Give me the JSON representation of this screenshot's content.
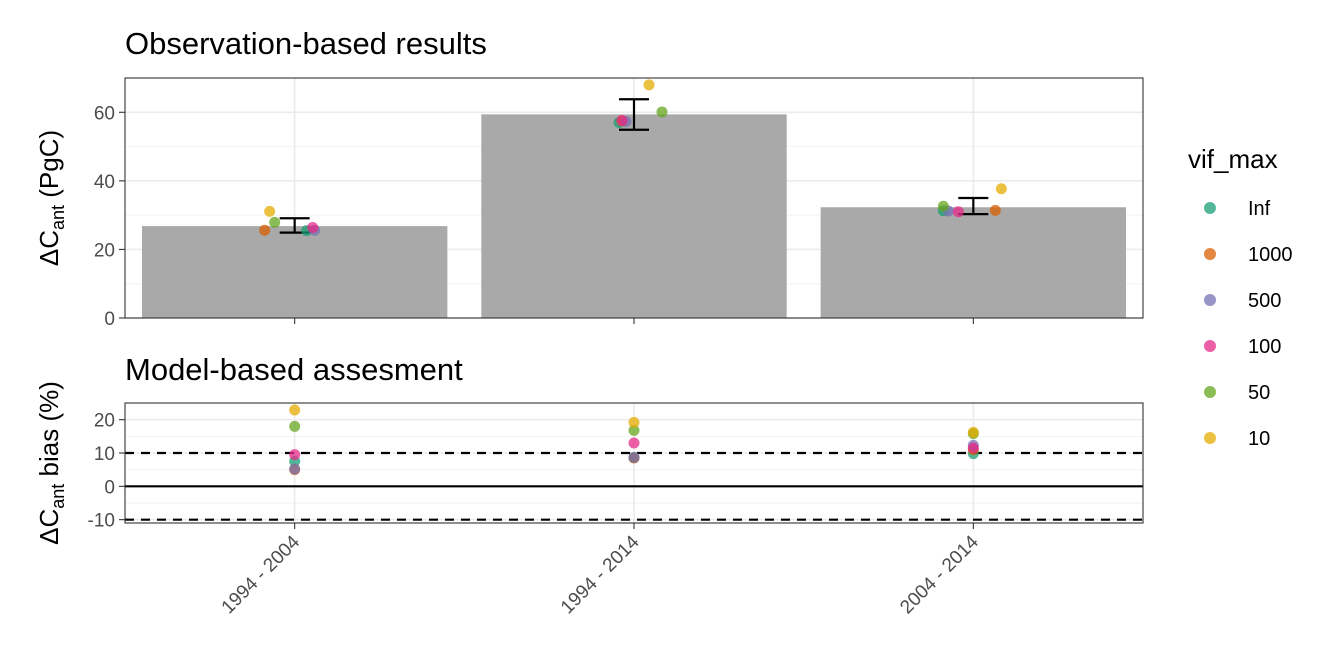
{
  "chart_data": [
    {
      "type": "bar",
      "title": "Observation-based results",
      "ylabel": {
        "delta": "Δ",
        "base": "C",
        "sub": "ant",
        "rest": " (PgC)"
      },
      "ylim": [
        0,
        70
      ],
      "y_ticks": [
        0,
        20,
        40,
        60
      ],
      "categories": [
        "1994 - 2004",
        "1994 - 2014",
        "2004 - 2014"
      ],
      "bar_values": [
        26.8,
        59.4,
        32.3
      ],
      "bar_color": "#a9a9a9",
      "error_bars": [
        {
          "low": 24.9,
          "high": 29.1
        },
        {
          "low": 54.9,
          "high": 63.8
        },
        {
          "low": 30.3,
          "high": 35.0
        }
      ],
      "series": [
        {
          "name": "Inf",
          "color": "#1b9e77",
          "values": [
            25.5,
            57.0,
            31.3
          ]
        },
        {
          "name": "1000",
          "color": "#d95f02",
          "values": [
            25.6,
            57.5,
            31.4
          ]
        },
        {
          "name": "500",
          "color": "#7570b3",
          "values": [
            25.6,
            57.3,
            31.2
          ]
        },
        {
          "name": "100",
          "color": "#e7298a",
          "values": [
            26.4,
            57.6,
            31.0
          ]
        },
        {
          "name": "50",
          "color": "#66a61e",
          "values": [
            27.9,
            60.1,
            32.6
          ]
        },
        {
          "name": "10",
          "color": "#e6ab02",
          "values": [
            31.1,
            68.0,
            37.7
          ]
        }
      ],
      "grid": true
    },
    {
      "type": "scatter",
      "title": "Model-based assesment",
      "ylabel": {
        "delta": "Δ",
        "base": "C",
        "sub": "ant",
        "rest": " bias (%)"
      },
      "ylim": [
        -11,
        25
      ],
      "y_ticks": [
        -10,
        0,
        10,
        20
      ],
      "y_tick_labels": [
        "-10",
        "0",
        "10",
        "20"
      ],
      "categories": [
        "1994 - 2004",
        "1994 - 2014",
        "2004 - 2014"
      ],
      "reference_lines": [
        {
          "y": 10,
          "style": "dashed"
        },
        {
          "y": 0,
          "style": "solid"
        },
        {
          "y": -10,
          "style": "dashed"
        }
      ],
      "series": [
        {
          "name": "Inf",
          "color": "#1b9e77",
          "values": [
            7.5,
            8.6,
            9.8
          ]
        },
        {
          "name": "1000",
          "color": "#d95f02",
          "values": [
            5.0,
            8.5,
            11.0
          ]
        },
        {
          "name": "500",
          "color": "#7570b3",
          "values": [
            5.2,
            8.7,
            12.3
          ]
        },
        {
          "name": "100",
          "color": "#e7298a",
          "values": [
            9.5,
            13.0,
            11.5
          ]
        },
        {
          "name": "50",
          "color": "#66a61e",
          "values": [
            18.0,
            16.8,
            15.8
          ]
        },
        {
          "name": "10",
          "color": "#e6ab02",
          "values": [
            22.9,
            19.2,
            16.2
          ]
        }
      ],
      "grid": true
    }
  ],
  "legend": {
    "title": "vif_max",
    "placement": "right",
    "items": [
      {
        "label": "Inf",
        "color": "#1b9e77"
      },
      {
        "label": "1000",
        "color": "#d95f02"
      },
      {
        "label": "500",
        "color": "#7570b3"
      },
      {
        "label": "100",
        "color": "#e7298a"
      },
      {
        "label": "50",
        "color": "#66a61e"
      },
      {
        "label": "10",
        "color": "#e6ab02"
      }
    ]
  }
}
